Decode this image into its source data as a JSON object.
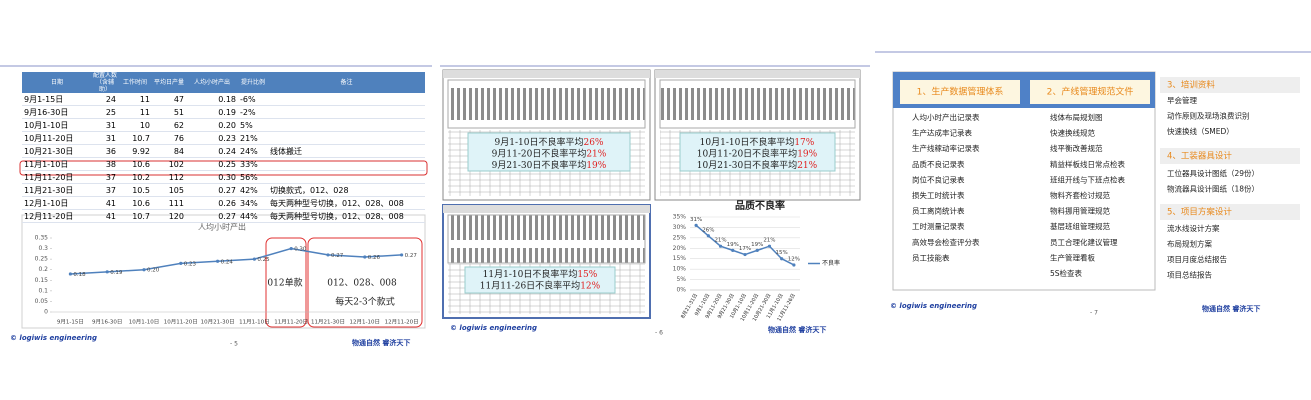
{
  "slide1": {
    "table": {
      "headers": [
        "日期",
        "配置人数（含辅助）",
        "工作时间",
        "平均日产量",
        "人均小时产出",
        "提升比例",
        "备注"
      ],
      "rows": [
        [
          "9月1-15日",
          "24",
          "11",
          "47",
          "0.18",
          "-6%",
          null
        ],
        [
          "9月16-30日",
          "25",
          "11",
          "51",
          "0.19",
          "-2%",
          null
        ],
        [
          "10月1-10日",
          "31",
          "10",
          "62",
          "0.20",
          "5%",
          null
        ],
        [
          "10月11-20日",
          "31",
          "10.7",
          "76",
          "0.23",
          "21%",
          null
        ],
        [
          "10月21-30日",
          "36",
          "9.92",
          "84",
          "0.24",
          "24%",
          "线体搬迁"
        ],
        [
          "11月1-10日",
          "38",
          "10.6",
          "102",
          "0.25",
          "33%",
          null
        ],
        [
          "11月11-20日",
          "37",
          "10.2",
          "112",
          "0.30",
          "56%",
          null
        ],
        [
          "11月21-30日",
          "37",
          "10.5",
          "105",
          "0.27",
          "42%",
          "切换款式，012、028"
        ],
        [
          "12月1-10日",
          "41",
          "10.6",
          "111",
          "0.26",
          "34%",
          "每天两种型号切换，012、028、008"
        ],
        [
          "12月11-20日",
          "41",
          "10.7",
          "120",
          "0.27",
          "44%",
          "每天两种型号切换，012、028、008"
        ]
      ]
    },
    "footer": {
      "brand": "© logiwis engineering",
      "page": "- 5",
      "slogan": "物通自然 睿济天下"
    }
  },
  "slide2": {
    "panels": [
      {
        "lines": [
          {
            "text": "9月1-10日不良率平均",
            "pct": "26%"
          },
          {
            "text": "9月11-20日不良率平均",
            "pct": "21%"
          },
          {
            "text": "9月21-30日不良率平均",
            "pct": "19%"
          }
        ]
      },
      {
        "lines": [
          {
            "text": "10月1-10日不良率平均",
            "pct": "17%"
          },
          {
            "text": "10月11-20日不良率平均",
            "pct": "19%"
          },
          {
            "text": "10月21-30日不良率平均",
            "pct": "21%"
          }
        ]
      },
      {
        "lines": [
          {
            "text": "11月1-10日不良率平均",
            "pct": "15%"
          },
          {
            "text": "11月11-26日不良率平均",
            "pct": "12%"
          }
        ]
      }
    ],
    "footer": {
      "brand": "© logiwis engineering",
      "page": "- 6",
      "slogan": "物通自然 睿济天下"
    }
  },
  "slide3": {
    "sections": [
      {
        "title": "1、生产数据管理体系",
        "items": [
          "人均小时产出记录表",
          "生产达成率记录表",
          "生产线稼动率记录表",
          "品质不良记录表",
          "岗位不良记录表",
          "损失工时统计表",
          "员工离岗统计表",
          "工时测量记录表",
          "高效导会检查评分表",
          "员工技能表"
        ]
      },
      {
        "title": "2、产线管理规范文件",
        "items": [
          "线体布局规划图",
          "快速换线规范",
          "线平衡改善规范",
          "精益样板线日常点检表",
          "班组开线与下班点检表",
          "物料齐套检讨规范",
          "物料挪用管理规范",
          "基层班组管理规范",
          "员工合理化建议管理",
          "生产管理看板",
          "5S检查表"
        ]
      },
      {
        "title": "3、培训资料",
        "items": [
          "早会管理",
          "动作原则及现场浪费识别",
          "快速换线（SMED）"
        ]
      },
      {
        "title": "4、工装器具设计",
        "items": [
          "工位器具设计图纸（29份）",
          "物流器具设计图纸（18份）"
        ]
      },
      {
        "title": "5、项目方案设计",
        "items": [
          "流水线设计方案",
          "布局规划方案",
          "项目月度总结报告",
          "项目总结报告"
        ]
      }
    ],
    "footer": {
      "brand": "© logiwis engineering",
      "page": "- 7",
      "slogan": "物通自然 睿济天下"
    }
  },
  "chart_data": [
    {
      "type": "line",
      "title": "人均小时产出",
      "categories": [
        "9月1-15日",
        "9月16-30日",
        "10月1-10日",
        "10月11-20日",
        "10月21-30日",
        "11月1-10日",
        "11月11-20日",
        "11月21-30日",
        "12月1-10日",
        "12月11-20日"
      ],
      "series": [
        {
          "color": "#4f81bd",
          "values": [
            0.18,
            0.19,
            0.2,
            0.23,
            0.24,
            0.25,
            0.3,
            0.27,
            0.26,
            0.27
          ],
          "value_labels": [
            "0.18",
            "0.19",
            "0.20",
            "0.23",
            "0.24",
            "0.25",
            "0.30",
            "0.27",
            "0.26",
            "0.27"
          ]
        }
      ],
      "ylim": [
        0,
        0.35
      ],
      "yticks": [
        0,
        0.05,
        0.1,
        0.15,
        0.2,
        0.25,
        0.3,
        0.35
      ],
      "grid": false,
      "annotations": [
        "012单款",
        "012、028、008",
        "每天2-3个款式"
      ]
    },
    {
      "type": "line",
      "title": "品质不良率",
      "categories": [
        "8月21-31日",
        "9月1-10日",
        "9月11-20日",
        "9月21-30日",
        "10月1-10日",
        "10月11-20日",
        "10月21-30日",
        "11月1-10日",
        "11月11-26日"
      ],
      "series": [
        {
          "name": "不良率",
          "color": "#4f81bd",
          "values": [
            31,
            26,
            21,
            19,
            17,
            19,
            21,
            15,
            12
          ],
          "value_labels": [
            "31%",
            "26%",
            "21%",
            "19%",
            "17%",
            "19%",
            "21%",
            "15%",
            "12%"
          ]
        }
      ],
      "ylim": [
        0,
        35
      ],
      "yticks": [
        {
          "value": 0,
          "label": "0%"
        },
        {
          "value": 5,
          "label": "5%"
        },
        {
          "value": 10,
          "label": "10%"
        },
        {
          "value": 15,
          "label": "15%"
        },
        {
          "value": 20,
          "label": "20%"
        },
        {
          "value": 25,
          "label": "25%"
        },
        {
          "value": 30,
          "label": "30%"
        },
        {
          "value": 35,
          "label": "35%"
        }
      ],
      "grid": true,
      "legend": "right"
    }
  ]
}
